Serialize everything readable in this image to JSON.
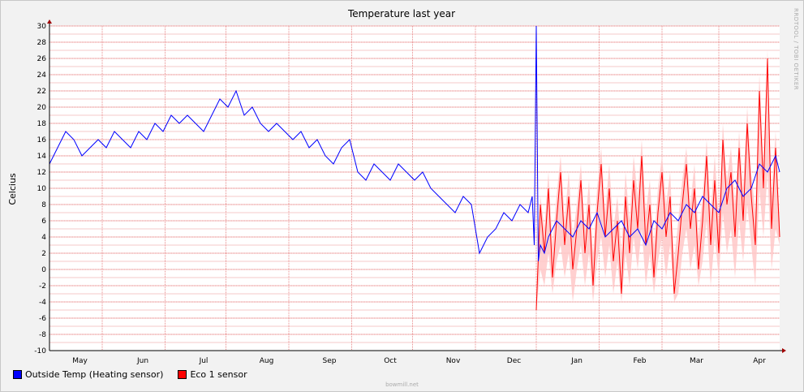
{
  "chart_data": {
    "type": "line",
    "title": "Temperature last year",
    "ylabel": "Celcius",
    "xlabel": "",
    "ylim": [
      -10,
      30
    ],
    "y_ticks": [
      -10,
      -8,
      -6,
      -4,
      -2,
      0,
      2,
      4,
      6,
      8,
      10,
      12,
      14,
      16,
      18,
      20,
      22,
      24,
      26,
      28,
      30
    ],
    "x_range_days": [
      0,
      360
    ],
    "x_tick_labels": [
      {
        "label": "May",
        "day": 15
      },
      {
        "label": "Jun",
        "day": 46
      },
      {
        "label": "Jul",
        "day": 76
      },
      {
        "label": "Aug",
        "day": 107
      },
      {
        "label": "Sep",
        "day": 138
      },
      {
        "label": "Oct",
        "day": 168
      },
      {
        "label": "Nov",
        "day": 199
      },
      {
        "label": "Dec",
        "day": 229
      },
      {
        "label": "Jan",
        "day": 260
      },
      {
        "label": "Feb",
        "day": 291
      },
      {
        "label": "Mar",
        "day": 319
      },
      {
        "label": "Apr",
        "day": 350
      }
    ],
    "x_month_boundaries": [
      26,
      57,
      87,
      118,
      149,
      179,
      210,
      240,
      271,
      302,
      330
    ],
    "grid": true,
    "legend_position": "bottom-left",
    "series": [
      {
        "name": "Outside Temp (Heating sensor)",
        "color": "#0000ff",
        "x": [
          0,
          4,
          8,
          12,
          16,
          20,
          24,
          28,
          32,
          36,
          40,
          44,
          48,
          52,
          56,
          60,
          64,
          68,
          72,
          76,
          80,
          84,
          88,
          92,
          96,
          100,
          104,
          108,
          112,
          116,
          120,
          124,
          128,
          132,
          136,
          140,
          144,
          148,
          152,
          156,
          160,
          164,
          168,
          172,
          176,
          180,
          184,
          188,
          192,
          196,
          200,
          204,
          208,
          212,
          216,
          220,
          224,
          228,
          232,
          236,
          238,
          239,
          240,
          241,
          242,
          244,
          246,
          248,
          250,
          254,
          258,
          262,
          266,
          270,
          274,
          278,
          282,
          286,
          290,
          294,
          298,
          302,
          306,
          310,
          314,
          318,
          322,
          326,
          330,
          334,
          338,
          342,
          346,
          350,
          354,
          358,
          360
        ],
        "values": [
          13,
          15,
          17,
          16,
          14,
          15,
          16,
          15,
          17,
          16,
          15,
          17,
          16,
          18,
          17,
          19,
          18,
          19,
          18,
          17,
          19,
          21,
          20,
          22,
          19,
          20,
          18,
          17,
          18,
          17,
          16,
          17,
          15,
          16,
          14,
          13,
          15,
          16,
          12,
          11,
          13,
          12,
          11,
          13,
          12,
          11,
          12,
          10,
          9,
          8,
          7,
          9,
          8,
          2,
          4,
          5,
          7,
          6,
          8,
          7,
          9,
          3,
          30,
          1,
          3,
          2,
          4,
          5,
          6,
          5,
          4,
          6,
          5,
          7,
          4,
          5,
          6,
          4,
          5,
          3,
          6,
          5,
          7,
          6,
          8,
          7,
          9,
          8,
          7,
          10,
          11,
          9,
          10,
          13,
          12,
          14,
          12
        ]
      },
      {
        "name": "Eco 1 sensor",
        "color": "#ff0000",
        "x": [
          240,
          242,
          244,
          246,
          248,
          250,
          252,
          254,
          256,
          258,
          260,
          262,
          264,
          266,
          268,
          270,
          272,
          274,
          276,
          278,
          280,
          282,
          284,
          286,
          288,
          290,
          292,
          294,
          296,
          298,
          300,
          302,
          304,
          306,
          308,
          310,
          312,
          314,
          316,
          318,
          320,
          322,
          324,
          326,
          328,
          330,
          332,
          334,
          336,
          338,
          340,
          342,
          344,
          346,
          348,
          350,
          352,
          354,
          356,
          358,
          360
        ],
        "values": [
          -5,
          8,
          2,
          10,
          -1,
          6,
          12,
          3,
          9,
          0,
          5,
          11,
          2,
          8,
          -2,
          7,
          13,
          4,
          10,
          1,
          6,
          -3,
          9,
          2,
          11,
          5,
          14,
          3,
          8,
          -1,
          7,
          12,
          4,
          9,
          -3,
          2,
          8,
          13,
          5,
          10,
          0,
          6,
          14,
          3,
          11,
          2,
          16,
          8,
          12,
          4,
          15,
          6,
          18,
          9,
          3,
          22,
          10,
          26,
          5,
          15,
          4
        ],
        "envelope_low": [
          -5,
          0,
          -2,
          2,
          -3,
          1,
          3,
          -1,
          2,
          -4,
          0,
          3,
          -2,
          2,
          -4,
          1,
          4,
          -1,
          3,
          -3,
          1,
          -4,
          2,
          -2,
          4,
          0,
          5,
          -2,
          2,
          -3,
          1,
          4,
          -1,
          3,
          -4,
          -3,
          2,
          5,
          0,
          3,
          -2,
          1,
          6,
          -2,
          4,
          -1,
          7,
          2,
          5,
          -1,
          6,
          1,
          8,
          3,
          -2,
          10,
          4,
          12,
          0,
          5,
          3
        ],
        "envelope_high": [
          -3,
          9,
          5,
          12,
          3,
          9,
          14,
          6,
          12,
          4,
          8,
          13,
          5,
          11,
          2,
          10,
          15,
          7,
          13,
          5,
          9,
          2,
          12,
          6,
          14,
          9,
          16,
          7,
          11,
          3,
          10,
          14,
          8,
          12,
          1,
          6,
          11,
          15,
          8,
          13,
          4,
          9,
          16,
          7,
          14,
          6,
          18,
          11,
          15,
          8,
          17,
          10,
          20,
          12,
          7,
          24,
          13,
          27,
          9,
          17,
          6
        ]
      }
    ]
  },
  "side_text": "RRDTOOL / TOBI OETIKER",
  "footer_text": "bowmill.net"
}
